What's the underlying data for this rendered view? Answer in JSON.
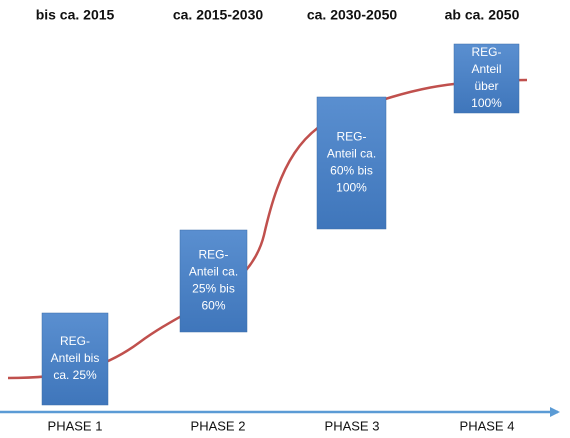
{
  "periods": [
    "bis ca. 2015",
    "ca. 2015-2030",
    "ca. 2030-2050",
    "ab ca. 2050"
  ],
  "boxes": [
    {
      "lines": [
        "REG-",
        "Anteil bis",
        "ca. 25%"
      ]
    },
    {
      "lines": [
        "REG-",
        "Anteil ca.",
        "25% bis",
        "60%"
      ]
    },
    {
      "lines": [
        "REG-",
        "Anteil ca.",
        "60% bis",
        "100%"
      ]
    },
    {
      "lines": [
        "REG-",
        "Anteil",
        "über",
        "100%"
      ]
    }
  ],
  "phases": [
    "PHASE 1",
    "PHASE 2",
    "PHASE 3",
    "PHASE 4"
  ]
}
